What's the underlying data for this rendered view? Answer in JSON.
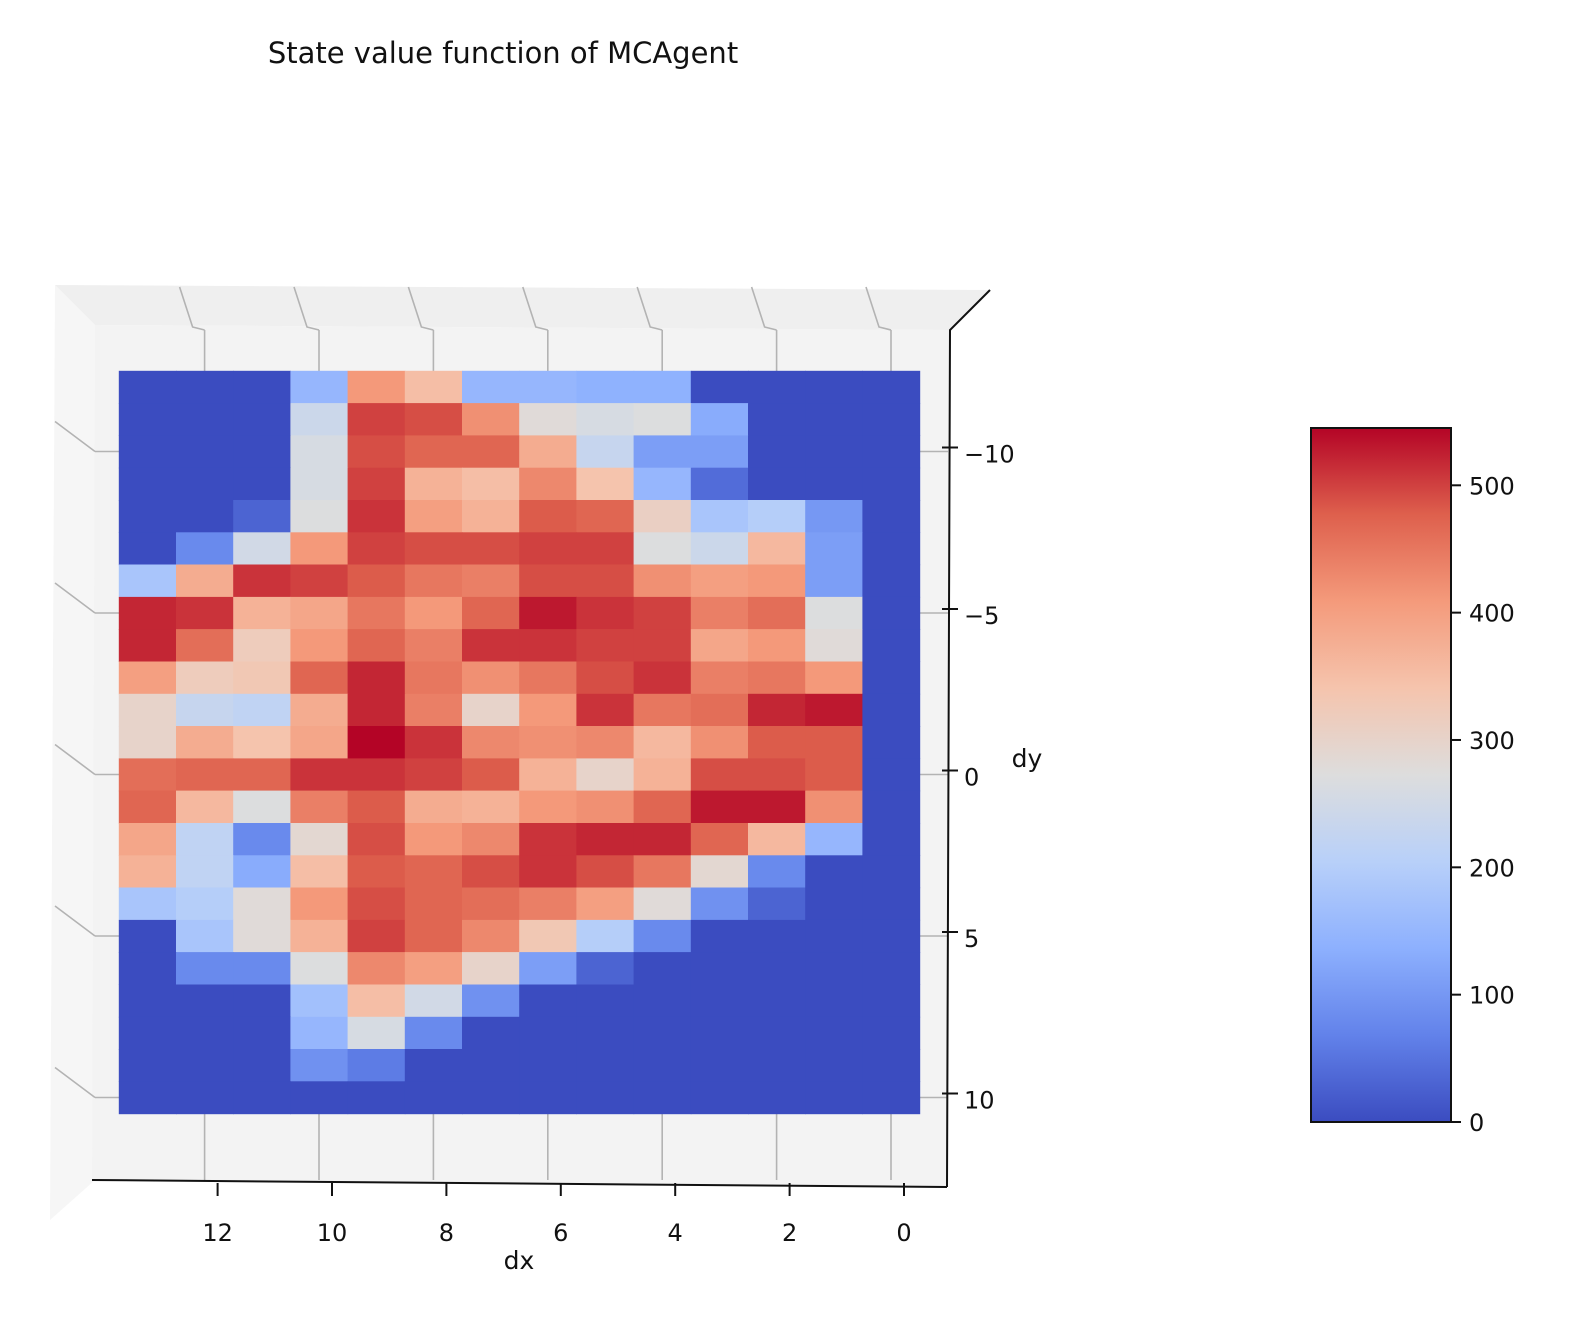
{
  "chart_data": {
    "type": "heatmap",
    "title": "State value function of MCAgent",
    "xlabel": "dx",
    "ylabel": "dy",
    "colormap": "coolwarm",
    "x_ticks": [
      12,
      10,
      8,
      6,
      4,
      2,
      0
    ],
    "y_ticks": [
      -10,
      -5,
      0,
      5,
      10
    ],
    "y_tick_labels": [
      "−10",
      "−5",
      "0",
      "5",
      "10"
    ],
    "colorbar": {
      "ticks": [
        0,
        100,
        200,
        300,
        400,
        500
      ],
      "range": [
        0,
        545
      ]
    },
    "x_range": [
      -1,
      14
    ],
    "y_range": [
      -13,
      13
    ],
    "x_values": [
      13,
      12,
      11,
      10,
      9,
      8,
      7,
      6,
      5,
      4,
      3,
      2,
      1,
      0
    ],
    "y_values": [
      -12,
      -11,
      -10,
      -9,
      -8,
      -7,
      -6,
      -5,
      -4,
      -3,
      -2,
      -1,
      0,
      1,
      2,
      3,
      4,
      5,
      6,
      7,
      8,
      9,
      10
    ],
    "values": [
      [
        0,
        0,
        0,
        150,
        410,
        350,
        150,
        150,
        140,
        140,
        0,
        0,
        0,
        0
      ],
      [
        0,
        0,
        0,
        240,
        500,
        490,
        420,
        280,
        260,
        270,
        130,
        0,
        0,
        0
      ],
      [
        0,
        0,
        0,
        260,
        490,
        470,
        470,
        380,
        230,
        110,
        110,
        0,
        0,
        0
      ],
      [
        0,
        0,
        0,
        260,
        500,
        370,
        350,
        430,
        340,
        150,
        40,
        0,
        0,
        0
      ],
      [
        0,
        0,
        30,
        270,
        510,
        400,
        370,
        480,
        470,
        310,
        180,
        200,
        100,
        0
      ],
      [
        0,
        80,
        250,
        410,
        500,
        490,
        490,
        500,
        500,
        270,
        240,
        360,
        110,
        0
      ],
      [
        180,
        380,
        510,
        500,
        480,
        450,
        440,
        490,
        490,
        420,
        400,
        410,
        110,
        0
      ],
      [
        520,
        510,
        370,
        390,
        450,
        410,
        470,
        530,
        510,
        500,
        440,
        460,
        270,
        0
      ],
      [
        520,
        460,
        320,
        410,
        470,
        440,
        510,
        510,
        500,
        500,
        390,
        410,
        280,
        0
      ],
      [
        400,
        320,
        330,
        470,
        520,
        450,
        420,
        450,
        490,
        510,
        440,
        450,
        410,
        0
      ],
      [
        300,
        230,
        220,
        380,
        520,
        440,
        300,
        410,
        510,
        450,
        460,
        520,
        530,
        0
      ],
      [
        300,
        380,
        340,
        390,
        545,
        510,
        430,
        420,
        430,
        360,
        420,
        480,
        480,
        0
      ],
      [
        460,
        470,
        470,
        510,
        510,
        500,
        480,
        370,
        300,
        370,
        490,
        490,
        480,
        0
      ],
      [
        470,
        360,
        270,
        440,
        480,
        380,
        370,
        410,
        420,
        470,
        530,
        530,
        420,
        0
      ],
      [
        390,
        220,
        80,
        290,
        490,
        410,
        430,
        510,
        520,
        520,
        470,
        360,
        150,
        0
      ],
      [
        370,
        220,
        130,
        350,
        480,
        470,
        490,
        510,
        490,
        450,
        290,
        80,
        0,
        0
      ],
      [
        180,
        200,
        280,
        410,
        490,
        470,
        460,
        440,
        400,
        280,
        90,
        30,
        0,
        0
      ],
      [
        0,
        180,
        280,
        370,
        500,
        470,
        430,
        330,
        200,
        80,
        0,
        0,
        0,
        0
      ],
      [
        0,
        80,
        80,
        270,
        430,
        400,
        300,
        110,
        30,
        0,
        0,
        0,
        0,
        0
      ],
      [
        0,
        0,
        0,
        170,
        350,
        250,
        90,
        0,
        0,
        0,
        0,
        0,
        0,
        0
      ],
      [
        0,
        0,
        0,
        150,
        260,
        80,
        0,
        0,
        0,
        0,
        0,
        0,
        0,
        0
      ],
      [
        0,
        0,
        0,
        90,
        60,
        0,
        0,
        0,
        0,
        0,
        0,
        0,
        0,
        0
      ],
      [
        0,
        0,
        0,
        0,
        0,
        0,
        0,
        0,
        0,
        0,
        0,
        0,
        0,
        0
      ]
    ]
  }
}
